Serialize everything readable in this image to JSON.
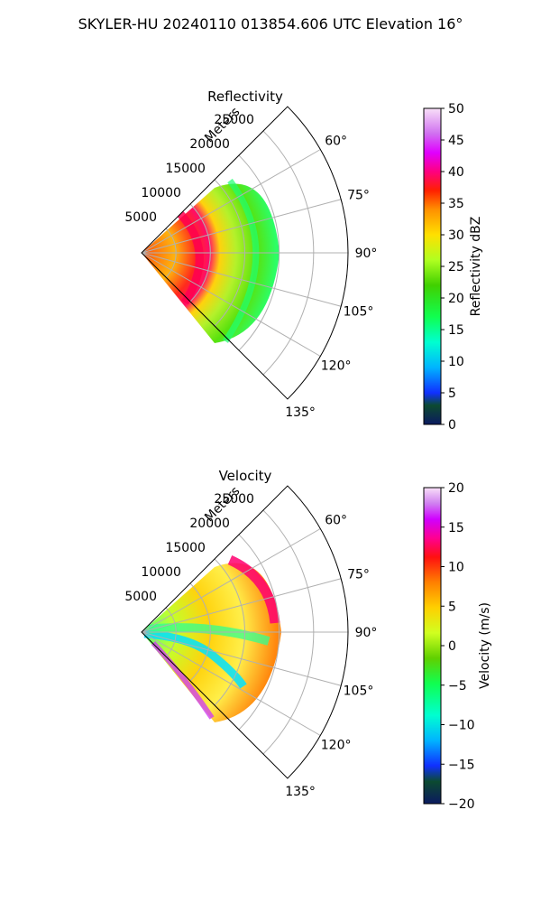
{
  "figure": {
    "title": "SKYLER-HU  20240110  013854.606 UTC Elevation 16°"
  },
  "chart_data": [
    {
      "type": "polar-sector",
      "title": "Reflectivity",
      "radial_label": "Meters",
      "radial_ticks": [
        "5000",
        "10000",
        "15000",
        "20000",
        "25000"
      ],
      "radial_values": [
        5000,
        10000,
        15000,
        20000,
        25000
      ],
      "rmax": 30000,
      "angle_range_deg": [
        45,
        135
      ],
      "angle_ticks": [
        "60°",
        "75°",
        "90°",
        "105°",
        "120°",
        "135°"
      ],
      "angle_values": [
        60,
        75,
        90,
        105,
        120,
        135
      ],
      "data_extent_m": 19000,
      "colorbar": {
        "label": "Reflectivity dBZ",
        "ticks": [
          "0",
          "5",
          "10",
          "15",
          "20",
          "25",
          "30",
          "35",
          "40",
          "45",
          "50"
        ],
        "range": [
          0,
          50
        ]
      }
    },
    {
      "type": "polar-sector",
      "title": "Velocity",
      "radial_label": "Meters",
      "radial_ticks": [
        "5000",
        "10000",
        "15000",
        "20000",
        "25000"
      ],
      "radial_values": [
        5000,
        10000,
        15000,
        20000,
        25000
      ],
      "rmax": 30000,
      "angle_range_deg": [
        45,
        135
      ],
      "angle_ticks": [
        "60°",
        "75°",
        "90°",
        "105°",
        "120°",
        "135°"
      ],
      "angle_values": [
        60,
        75,
        90,
        105,
        120,
        135
      ],
      "data_extent_m": 19000,
      "colorbar": {
        "label": "Velocity (m/s)",
        "ticks": [
          "−20",
          "−15",
          "−10",
          "−5",
          "0",
          "5",
          "10",
          "15",
          "20"
        ],
        "range": [
          -20,
          20
        ]
      }
    }
  ]
}
